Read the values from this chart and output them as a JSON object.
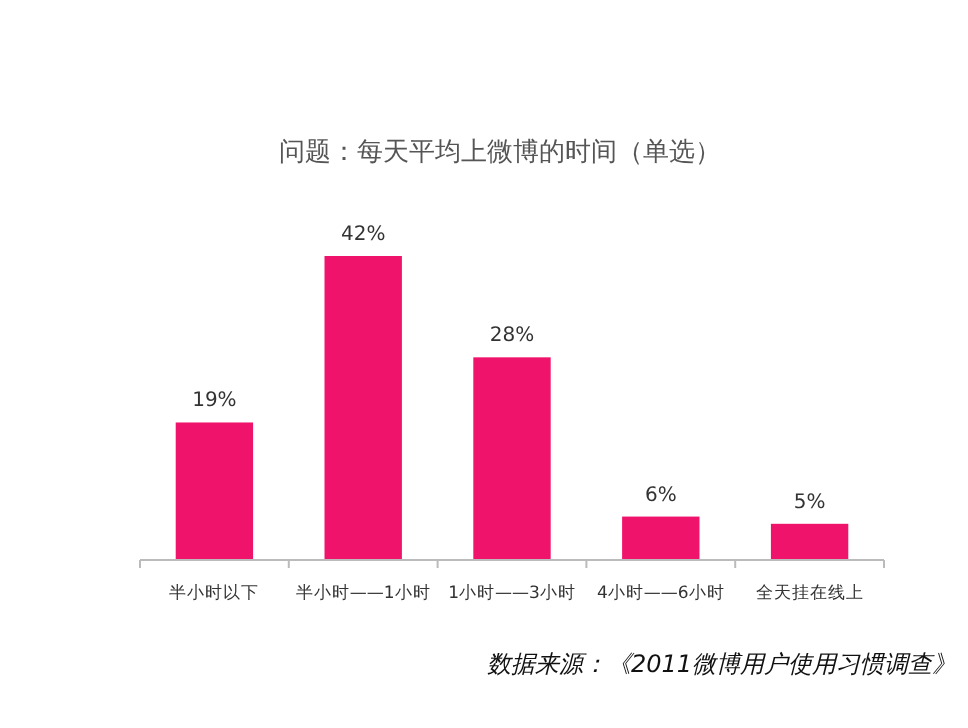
{
  "chart_data": {
    "type": "bar",
    "title": "问题：每天平均上微博的时间（单选）",
    "categories": [
      "半小时以下",
      "半小时——1小时",
      "1小时——3小时",
      "4小时——6小时",
      "全天挂在线上"
    ],
    "values": [
      19,
      42,
      28,
      6,
      5
    ],
    "color": "#f0136b",
    "value_labels": [
      "19%",
      "42%",
      "28%",
      "6%",
      "5%"
    ],
    "annotations": [
      "数据来源：《2011微博用户使用习惯调查》"
    ]
  }
}
